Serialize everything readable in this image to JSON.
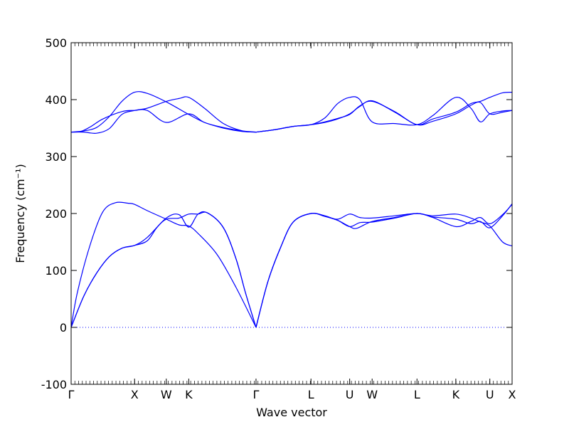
{
  "chart_data": {
    "type": "line",
    "title": "",
    "xlabel": "Wave vector",
    "ylabel": "Frequency (cm⁻¹)",
    "ylim": [
      -100,
      500
    ],
    "xlim": [
      0,
      6.95
    ],
    "y_ticks": [
      -100,
      0,
      100,
      200,
      300,
      400,
      500
    ],
    "x_ticks": [
      {
        "pos": 0.0,
        "label": "Γ"
      },
      {
        "pos": 1.0,
        "label": "X"
      },
      {
        "pos": 1.5,
        "label": "W"
      },
      {
        "pos": 1.854,
        "label": "K"
      },
      {
        "pos": 2.914,
        "label": "Γ"
      },
      {
        "pos": 3.78,
        "label": "L"
      },
      {
        "pos": 4.39,
        "label": "U"
      },
      {
        "pos": 4.744,
        "label": "W"
      },
      {
        "pos": 5.451,
        "label": "L"
      },
      {
        "pos": 6.063,
        "label": "K"
      },
      {
        "pos": 6.599,
        "label": "U"
      },
      {
        "pos": 6.95,
        "label": "X"
      }
    ],
    "grid": false,
    "line_color": "#0000ff",
    "zero_line_color": "#0000ff",
    "series": [
      {
        "x": [
          0,
          0.1,
          0.3,
          0.5,
          0.7,
          0.9,
          1.0,
          1.2,
          1.5,
          1.7,
          1.854,
          2.0,
          2.3,
          2.6,
          2.914
        ],
        "y": [
          0,
          62,
          145,
          203,
          219,
          218,
          216,
          205,
          190,
          180,
          178,
          165,
          128,
          70,
          0
        ]
      },
      {
        "x": [
          0,
          0.2,
          0.4,
          0.6,
          0.8,
          1.0,
          1.2,
          1.5,
          1.7,
          1.854,
          2.0,
          2.15,
          2.4,
          2.6,
          2.75,
          2.914
        ],
        "y": [
          0,
          55,
          95,
          124,
          139,
          144,
          158,
          192,
          198,
          176,
          199,
          201,
          175,
          120,
          60,
          0
        ]
      },
      {
        "x": [
          0,
          0.2,
          0.4,
          0.6,
          0.8,
          1.0,
          1.2,
          1.35,
          1.5,
          1.7,
          1.854,
          2.0,
          2.15,
          2.4,
          2.6,
          2.75,
          2.914
        ],
        "y": [
          0,
          55,
          95,
          124,
          139,
          144,
          152,
          175,
          190,
          192,
          199,
          199,
          201,
          175,
          120,
          60,
          0
        ]
      },
      {
        "x": [
          2.914,
          3.1,
          3.3,
          3.5,
          3.78,
          4.0,
          4.2,
          4.39,
          4.55,
          4.744,
          5.1,
          5.451,
          5.7,
          6.063,
          6.3,
          6.45,
          6.599,
          6.8,
          6.95
        ],
        "y": [
          0,
          80,
          140,
          185,
          200,
          196,
          190,
          199,
          193,
          192,
          196,
          200,
          196,
          199,
          192,
          185,
          178,
          150,
          143
        ]
      },
      {
        "x": [
          2.914,
          3.1,
          3.3,
          3.5,
          3.78,
          4.0,
          4.2,
          4.39,
          4.55,
          4.744,
          5.1,
          5.451,
          5.7,
          6.063,
          6.3,
          6.45,
          6.599,
          6.8,
          6.95
        ],
        "y": [
          0,
          80,
          140,
          185,
          200,
          195,
          188,
          177,
          184,
          185,
          192,
          200,
          193,
          177,
          186,
          193,
          182,
          198,
          216
        ]
      },
      {
        "x": [
          2.914,
          3.1,
          3.3,
          3.5,
          3.78,
          4.0,
          4.2,
          4.39,
          4.5,
          4.744,
          5.1,
          5.451,
          5.7,
          6.063,
          6.3,
          6.45,
          6.599,
          6.8,
          6.95
        ],
        "y": [
          0,
          80,
          140,
          185,
          200,
          195,
          188,
          177,
          174,
          186,
          193,
          200,
          194,
          190,
          182,
          186,
          175,
          196,
          217
        ]
      },
      {
        "x": [
          0,
          0.2,
          0.4,
          0.6,
          0.8,
          1.0,
          1.2,
          1.5,
          1.854,
          2.1,
          2.4,
          2.7,
          2.914
        ],
        "y": [
          343,
          345,
          351,
          370,
          397,
          413,
          411,
          396,
          374,
          360,
          350,
          344,
          343
        ]
      },
      {
        "x": [
          0,
          0.15,
          0.3,
          0.5,
          0.8,
          1.0,
          1.2,
          1.5,
          1.854,
          2.1,
          2.4,
          2.7,
          2.914
        ],
        "y": [
          343,
          344,
          352,
          366,
          379,
          381,
          381,
          360,
          375,
          360,
          351,
          345,
          343
        ]
      },
      {
        "x": [
          0,
          0.2,
          0.4,
          0.6,
          0.8,
          1.0,
          1.2,
          1.5,
          1.7,
          1.854,
          2.1,
          2.4,
          2.7,
          2.914
        ],
        "y": [
          343,
          343,
          341,
          349,
          374,
          381,
          385,
          397,
          402,
          404,
          385,
          358,
          345,
          343
        ]
      },
      {
        "x": [
          2.914,
          3.2,
          3.5,
          3.78,
          4.0,
          4.2,
          4.39,
          4.55,
          4.744,
          5.1,
          5.451,
          5.7,
          6.063,
          6.3,
          6.45,
          6.599,
          6.8,
          6.95
        ],
        "y": [
          343,
          347,
          353,
          356,
          360,
          366,
          375,
          388,
          398,
          378,
          356,
          362,
          375,
          390,
          395,
          375,
          378,
          381
        ]
      },
      {
        "x": [
          2.914,
          3.2,
          3.5,
          3.78,
          4.0,
          4.2,
          4.39,
          4.55,
          4.744,
          5.1,
          5.451,
          5.7,
          6.063,
          6.3,
          6.45,
          6.599,
          6.8,
          6.95
        ],
        "y": [
          343,
          347,
          353,
          356,
          368,
          393,
          404,
          400,
          361,
          358,
          356,
          372,
          404,
          385,
          361,
          375,
          380,
          381
        ]
      },
      {
        "x": [
          2.914,
          3.2,
          3.5,
          3.78,
          4.0,
          4.2,
          4.39,
          4.55,
          4.744,
          5.1,
          5.451,
          5.7,
          6.063,
          6.3,
          6.45,
          6.599,
          6.8,
          6.95
        ],
        "y": [
          343,
          347,
          353,
          356,
          361,
          367,
          374,
          389,
          397,
          379,
          356,
          366,
          378,
          393,
          397,
          404,
          412,
          413
        ]
      }
    ]
  }
}
